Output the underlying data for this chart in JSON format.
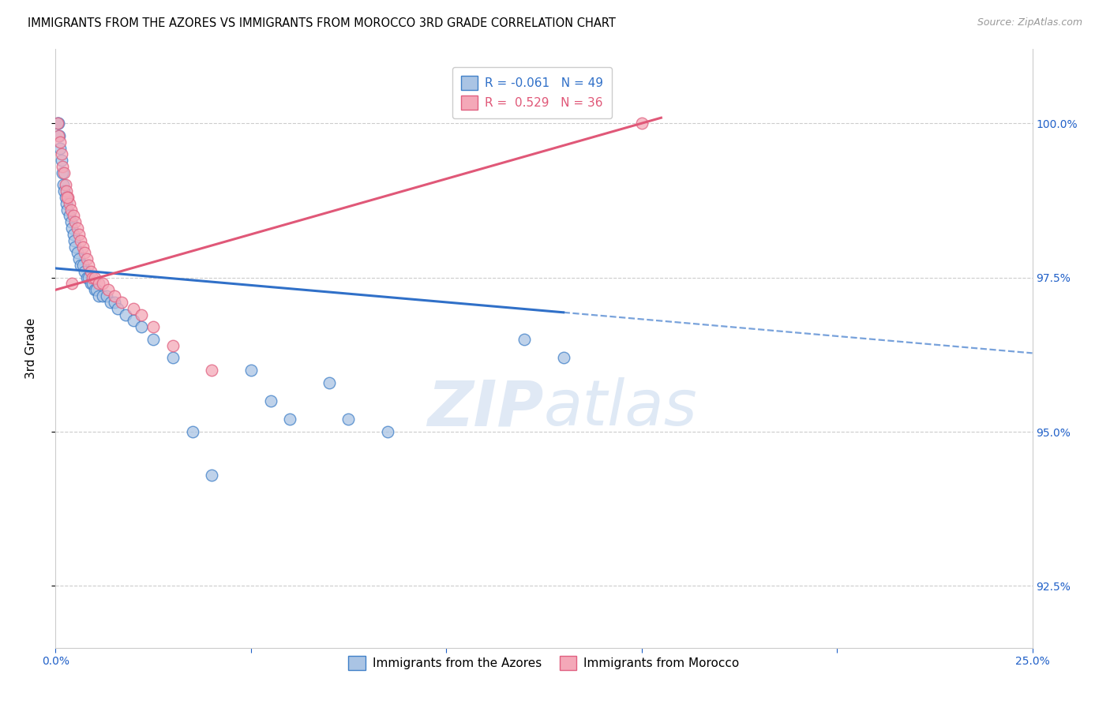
{
  "title": "IMMIGRANTS FROM THE AZORES VS IMMIGRANTS FROM MOROCCO 3RD GRADE CORRELATION CHART",
  "source": "Source: ZipAtlas.com",
  "ylabel": "3rd Grade",
  "xlim": [
    0.0,
    25.0
  ],
  "ylim": [
    91.5,
    101.2
  ],
  "y_ticks": [
    92.5,
    95.0,
    97.5,
    100.0
  ],
  "legend_blue_label": "Immigrants from the Azores",
  "legend_pink_label": "Immigrants from Morocco",
  "r_blue": -0.061,
  "n_blue": 49,
  "r_pink": 0.529,
  "n_pink": 36,
  "blue_fill": "#aac4e4",
  "pink_fill": "#f4a8b8",
  "blue_edge": "#4080c8",
  "pink_edge": "#e06080",
  "blue_line": "#3070c8",
  "pink_line": "#e05878",
  "blue_x": [
    0.05,
    0.08,
    0.1,
    0.12,
    0.15,
    0.18,
    0.2,
    0.22,
    0.25,
    0.28,
    0.3,
    0.35,
    0.4,
    0.42,
    0.45,
    0.48,
    0.5,
    0.55,
    0.6,
    0.65,
    0.7,
    0.75,
    0.8,
    0.85,
    0.9,
    0.95,
    1.0,
    1.05,
    1.1,
    1.2,
    1.3,
    1.4,
    1.5,
    1.6,
    1.8,
    2.0,
    2.2,
    2.5,
    3.0,
    3.5,
    4.0,
    5.0,
    5.5,
    6.0,
    7.0,
    7.5,
    8.5,
    12.0,
    13.0
  ],
  "blue_y": [
    100.0,
    100.0,
    99.8,
    99.6,
    99.4,
    99.2,
    99.0,
    98.9,
    98.8,
    98.7,
    98.6,
    98.5,
    98.4,
    98.3,
    98.2,
    98.1,
    98.0,
    97.9,
    97.8,
    97.7,
    97.7,
    97.6,
    97.5,
    97.5,
    97.4,
    97.4,
    97.3,
    97.3,
    97.2,
    97.2,
    97.2,
    97.1,
    97.1,
    97.0,
    96.9,
    96.8,
    96.7,
    96.5,
    96.2,
    95.0,
    94.3,
    96.0,
    95.5,
    95.2,
    95.8,
    95.2,
    95.0,
    96.5,
    96.2
  ],
  "pink_x": [
    0.05,
    0.08,
    0.12,
    0.15,
    0.18,
    0.22,
    0.25,
    0.28,
    0.32,
    0.35,
    0.4,
    0.45,
    0.5,
    0.55,
    0.6,
    0.65,
    0.7,
    0.75,
    0.8,
    0.85,
    0.9,
    0.95,
    1.0,
    1.1,
    1.2,
    1.35,
    1.5,
    1.7,
    2.0,
    2.2,
    2.5,
    3.0,
    4.0,
    15.0,
    0.3,
    0.42
  ],
  "pink_y": [
    100.0,
    99.8,
    99.7,
    99.5,
    99.3,
    99.2,
    99.0,
    98.9,
    98.8,
    98.7,
    98.6,
    98.5,
    98.4,
    98.3,
    98.2,
    98.1,
    98.0,
    97.9,
    97.8,
    97.7,
    97.6,
    97.5,
    97.5,
    97.4,
    97.4,
    97.3,
    97.2,
    97.1,
    97.0,
    96.9,
    96.7,
    96.4,
    96.0,
    100.0,
    98.8,
    97.4
  ],
  "blue_line_x0": 0.0,
  "blue_line_x1": 13.0,
  "blue_line_x2": 25.0,
  "blue_line_y0": 97.65,
  "blue_slope": -0.055,
  "pink_line_x0": 0.0,
  "pink_line_x1": 15.5,
  "pink_line_y0": 97.3,
  "pink_slope": 0.18
}
